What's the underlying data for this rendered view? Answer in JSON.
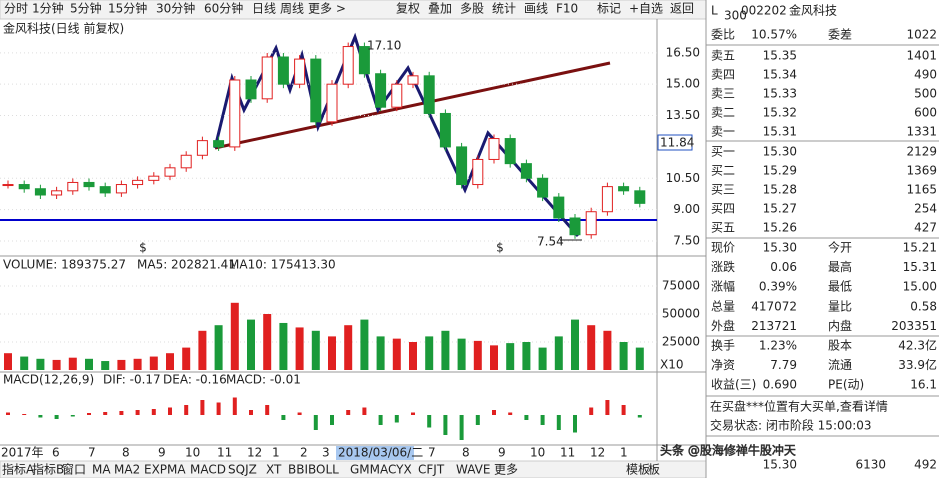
{
  "toolbar": {
    "left": [
      "分时",
      "1分钟",
      "5分钟",
      "15分钟",
      "30分钟",
      "60分钟",
      "日线",
      "周线",
      "更多 >"
    ],
    "right": [
      "复权",
      "叠加",
      "多股",
      "统计",
      "画线",
      "F10",
      "标记",
      "+自选",
      "返回"
    ]
  },
  "chart": {
    "type": "candlestick",
    "title": "金风科技(日线 前复权)",
    "high_label": "17.10",
    "low_label": "7.54",
    "price_tag": "11.84",
    "ylim": [
      6.83,
      18.07
    ],
    "yticks": [
      {
        "value": 16.5,
        "label": "16.50"
      },
      {
        "value": 15,
        "label": "15.00"
      },
      {
        "value": 13.5,
        "label": "13.50"
      },
      {
        "value": 10.5,
        "label": "10.50"
      },
      {
        "value": 9,
        "label": "9.00"
      },
      {
        "value": 7.5,
        "label": "7.50"
      }
    ],
    "closes": [
      10.2,
      10.0,
      9.7,
      9.9,
      10.3,
      10.1,
      9.8,
      10.2,
      10.4,
      10.6,
      11.0,
      11.6,
      12.3,
      12.0,
      15.2,
      14.3,
      16.3,
      15.0,
      16.2,
      13.2,
      15.0,
      16.8,
      15.5,
      13.9,
      15.0,
      15.4,
      13.6,
      12.0,
      10.2,
      11.4,
      12.4,
      11.2,
      10.5,
      9.6,
      8.6,
      7.8,
      8.9,
      10.1,
      9.9,
      9.3
    ],
    "markers": [
      "$",
      "$"
    ]
  },
  "volume": {
    "type": "bar",
    "title": "VOLUME: 189375.27",
    "ma5": "MA5: 202821.41",
    "ma10": "MA10: 175413.30",
    "scale_label": "X10",
    "ylim": [
      0,
      93750
    ],
    "yticks": [
      25000,
      50000,
      75000
    ],
    "values": [
      15000,
      12000,
      10000,
      9000,
      11000,
      10000,
      8000,
      9000,
      10000,
      12000,
      15000,
      20000,
      35000,
      40000,
      60000,
      45000,
      50000,
      42000,
      38000,
      35000,
      30000,
      40000,
      45000,
      30000,
      28000,
      25000,
      30000,
      35000,
      28000,
      26000,
      22000,
      24000,
      25000,
      20000,
      30000,
      45000,
      40000,
      35000,
      25000,
      20000
    ]
  },
  "macd": {
    "type": "bar",
    "title": "MACD(12,26,9)",
    "dif": "DIF: -0.17",
    "dea": "DEA: -0.16",
    "macd": "MACD: -0.01",
    "ylim": [
      -0.6,
      0.6
    ],
    "values": [
      0.05,
      0.02,
      -0.05,
      -0.08,
      -0.03,
      0.04,
      0.06,
      0.08,
      0.1,
      0.12,
      0.15,
      0.2,
      0.3,
      0.25,
      0.35,
      0.1,
      0.2,
      -0.1,
      0.05,
      -0.3,
      -0.2,
      0.1,
      0.15,
      -0.2,
      -0.15,
      0.05,
      -0.25,
      -0.4,
      -0.5,
      -0.2,
      0.1,
      0.05,
      -0.1,
      -0.2,
      -0.3,
      -0.35,
      0.15,
      0.3,
      0.2,
      -0.05
    ]
  },
  "date_axis": {
    "before": [
      "2017年",
      "6",
      "7",
      "8",
      "9",
      "10",
      "11",
      "12",
      "1",
      "2",
      "3"
    ],
    "cursor_date": "2018/03/06/二",
    "after": [
      "7",
      "8",
      "9",
      "10",
      "11",
      "12",
      "1"
    ]
  },
  "bottom_tabs": [
    "指标A",
    "指标B",
    "窗口",
    "MA",
    "MA2",
    "EXPMA",
    "MACD",
    "SQJZ",
    "XT",
    "BBIBOLL",
    "GMMA",
    "CYX",
    "CFJT",
    "WAVE",
    "更多"
  ],
  "bottom_right": [
    "模板",
    "板"
  ],
  "quote": {
    "prefix": "L",
    "board": "300",
    "code": "002202",
    "name": "金风科技",
    "wb_label": "委比",
    "wb": "10.57%",
    "wc_label": "委差",
    "wc": "1022",
    "asks": [
      [
        "卖五",
        "15.35",
        "1401"
      ],
      [
        "卖四",
        "15.34",
        "490"
      ],
      [
        "卖三",
        "15.33",
        "500"
      ],
      [
        "卖二",
        "15.32",
        "600"
      ],
      [
        "卖一",
        "15.31",
        "1331"
      ]
    ],
    "bids": [
      [
        "买一",
        "15.30",
        "2129"
      ],
      [
        "买二",
        "15.29",
        "1369"
      ],
      [
        "买三",
        "15.28",
        "1165"
      ],
      [
        "买四",
        "15.27",
        "254"
      ],
      [
        "买五",
        "15.26",
        "427"
      ]
    ],
    "stats": [
      [
        "现价",
        "15.30",
        "今开",
        "15.21"
      ],
      [
        "涨跌",
        "0.06",
        "最高",
        "15.31"
      ],
      [
        "涨幅",
        "0.39%",
        "最低",
        "15.00"
      ],
      [
        "总量",
        "417072",
        "量比",
        "0.58"
      ],
      [
        "外盘",
        "213721",
        "内盘",
        "203351"
      ],
      [
        "换手",
        "1.23%",
        "股本",
        "42.3亿"
      ],
      [
        "净资",
        "7.79",
        "流通",
        "33.9亿"
      ],
      [
        "收益(三)",
        "0.690",
        "PE(动)",
        "16.1"
      ]
    ],
    "notice": "在买盘***位置有大买单,查看详情",
    "status": "交易状态: 闭市阶段 15:00:03",
    "last_row": [
      "15.30",
      "6130",
      "492"
    ]
  },
  "watermark": "头条 @股海修禅牛股冲天"
}
